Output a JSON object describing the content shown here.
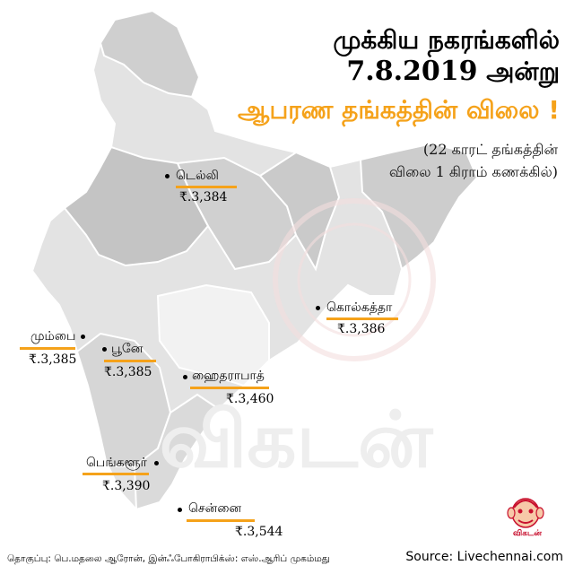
{
  "title": {
    "line1": "முக்கிய நகரங்களில்",
    "line2_date": "7.8.2019",
    "line2_word": " அன்று",
    "line3": "ஆபரண தங்கத்தின் விலை !"
  },
  "subtitle": {
    "line1": "(22 காரட் தங்கத்தின்",
    "line2": "விலை 1 கிராம் கணக்கில்)"
  },
  "cities": [
    {
      "name": "டெல்லி",
      "price": "₹.3,384"
    },
    {
      "name": "கொல்கத்தா",
      "price": "₹.3,386"
    },
    {
      "name": "மும்பை",
      "price": "₹.3,385"
    },
    {
      "name": "பூனே",
      "price": "₹.3,385"
    },
    {
      "name": "ஹைதராபாத்",
      "price": "₹.3,460"
    },
    {
      "name": "பெங்களூர்",
      "price": "₹.3,390"
    },
    {
      "name": "சென்னை",
      "price": "₹.3,544"
    }
  ],
  "credit": "தொகுப்பு: பெ.மதலை ஆரோன், இன்ஃபோகிராபிக்ஸ்: எஸ்.ஆரிப் முகம்மது",
  "source": "Source: Livechennai.com",
  "logo": {
    "text": "விகடன்",
    "icon": "vikatan-mascot-icon"
  },
  "watermark": {
    "text": "விகடன்"
  },
  "colors": {
    "accent": "#f5a21a",
    "map_light": "#e6e6e6",
    "map_mid": "#d3d3d3",
    "map_dark": "#c2c2c2",
    "logo_red": "#c8102e"
  }
}
